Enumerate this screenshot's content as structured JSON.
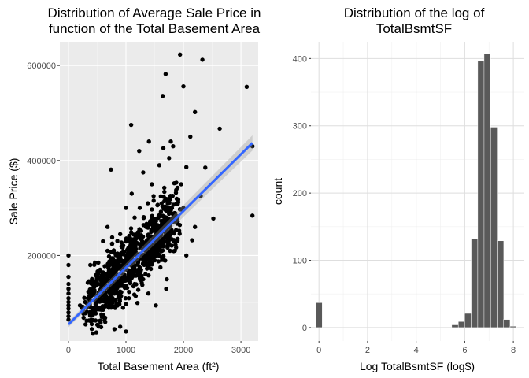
{
  "chart_data": [
    {
      "type": "scatter",
      "title": "Distribution of Average Sale Price in function of the Total Basement Area",
      "title_lines": [
        "Distribution of Average Sale Price in",
        "function of the Total Basement Area"
      ],
      "xlabel": "Total Basement Area (ft²)",
      "ylabel": "Sale Price ($)",
      "xlim": [
        -150,
        3300
      ],
      "ylim": [
        20000,
        650000
      ],
      "xticks": [
        0,
        1000,
        2000,
        3000
      ],
      "yticks": [
        200000,
        400000,
        600000
      ],
      "ytick_labels": [
        "200000",
        "400000",
        "600000"
      ],
      "grid": true,
      "point_color": "#000000",
      "panel_color": "#ebebeb",
      "trend": {
        "x": [
          0,
          3200
        ],
        "y": [
          55000,
          437000
        ],
        "color": "#3366ff",
        "band_color": "#999999"
      },
      "points": [
        {
          "x": 3100,
          "y": 555000
        },
        {
          "x": 3200,
          "y": 430000
        },
        {
          "x": 3200,
          "y": 284000
        },
        {
          "x": 2330,
          "y": 612000
        },
        {
          "x": 1940,
          "y": 623000
        },
        {
          "x": 2000,
          "y": 556000
        },
        {
          "x": 1690,
          "y": 582000
        },
        {
          "x": 1640,
          "y": 536000
        },
        {
          "x": 2200,
          "y": 502000
        },
        {
          "x": 2120,
          "y": 450000
        },
        {
          "x": 2630,
          "y": 467000
        },
        {
          "x": 1090,
          "y": 475000
        },
        {
          "x": 2520,
          "y": 278000
        },
        {
          "x": 2380,
          "y": 385000
        },
        {
          "x": 2200,
          "y": 260000
        },
        {
          "x": 2000,
          "y": 300000
        },
        {
          "x": 1820,
          "y": 430000
        },
        {
          "x": 1750,
          "y": 405000
        },
        {
          "x": 1650,
          "y": 426000
        },
        {
          "x": 1400,
          "y": 440000
        },
        {
          "x": 1230,
          "y": 420000
        },
        {
          "x": 1780,
          "y": 440000
        },
        {
          "x": 1580,
          "y": 390000
        },
        {
          "x": 1840,
          "y": 352000
        },
        {
          "x": 2050,
          "y": 386000
        },
        {
          "x": 740,
          "y": 381000
        },
        {
          "x": 1300,
          "y": 375000
        },
        {
          "x": 1960,
          "y": 350000
        },
        {
          "x": 2300,
          "y": 325000
        },
        {
          "x": 1480,
          "y": 325000
        },
        {
          "x": 1900,
          "y": 235000
        },
        {
          "x": 2150,
          "y": 232000
        },
        {
          "x": 1850,
          "y": 210000
        },
        {
          "x": 2050,
          "y": 200000
        },
        {
          "x": 2000,
          "y": 300000
        },
        {
          "x": 1600,
          "y": 175000
        },
        {
          "x": 1710,
          "y": 150000
        },
        {
          "x": 1390,
          "y": 120000
        },
        {
          "x": 1200,
          "y": 100000
        },
        {
          "x": 1520,
          "y": 95000
        },
        {
          "x": 1700,
          "y": 130000
        },
        {
          "x": 900,
          "y": 50000
        },
        {
          "x": 800,
          "y": 45000
        },
        {
          "x": 1000,
          "y": 40000
        },
        {
          "x": 640,
          "y": 60000
        },
        {
          "x": 430,
          "y": 85000
        },
        {
          "x": 330,
          "y": 92000
        },
        {
          "x": 200,
          "y": 95000
        },
        {
          "x": 550,
          "y": 170000
        },
        {
          "x": 520,
          "y": 185000
        },
        {
          "x": 420,
          "y": 140000
        },
        {
          "x": 380,
          "y": 180000
        },
        {
          "x": 600,
          "y": 230000
        },
        {
          "x": 680,
          "y": 260000
        },
        {
          "x": 760,
          "y": 225000
        },
        {
          "x": 1100,
          "y": 330000
        },
        {
          "x": 1450,
          "y": 350000
        },
        {
          "x": 1150,
          "y": 140000
        },
        {
          "x": 1250,
          "y": 165000
        },
        {
          "x": 950,
          "y": 90000
        },
        {
          "x": 1050,
          "y": 110000
        },
        {
          "x": 1300,
          "y": 200000
        },
        {
          "x": 1500,
          "y": 240000
        },
        {
          "x": 1350,
          "y": 260000
        },
        {
          "x": 900,
          "y": 245000
        },
        {
          "x": 1000,
          "y": 300000
        },
        {
          "x": 1150,
          "y": 280000
        },
        {
          "x": 1620,
          "y": 310000
        },
        {
          "x": 1700,
          "y": 280000
        },
        {
          "x": 1800,
          "y": 300000
        },
        {
          "x": 1200,
          "y": 240000
        },
        {
          "x": 700,
          "y": 130000
        },
        {
          "x": 820,
          "y": 150000
        },
        {
          "x": 960,
          "y": 170000
        },
        {
          "x": 1060,
          "y": 190000
        },
        {
          "x": 1120,
          "y": 220000
        },
        {
          "x": 870,
          "y": 115000
        },
        {
          "x": 760,
          "y": 100000
        },
        {
          "x": 640,
          "y": 115000
        },
        {
          "x": 1420,
          "y": 185000
        },
        {
          "x": 1560,
          "y": 210000
        },
        {
          "x": 1300,
          "y": 150000
        },
        {
          "x": 980,
          "y": 135000
        },
        {
          "x": 1080,
          "y": 155000
        },
        {
          "x": 860,
          "y": 185000
        },
        {
          "x": 1240,
          "y": 300000
        },
        {
          "x": 1380,
          "y": 310000
        }
      ],
      "zero_points": [
        {
          "x": 0,
          "y": 200000
        },
        {
          "x": 0,
          "y": 180000
        },
        {
          "x": 0,
          "y": 155000
        },
        {
          "x": 0,
          "y": 140000
        },
        {
          "x": 0,
          "y": 130000
        },
        {
          "x": 0,
          "y": 120000
        },
        {
          "x": 0,
          "y": 110000
        },
        {
          "x": 0,
          "y": 102000
        },
        {
          "x": 0,
          "y": 95000
        },
        {
          "x": 0,
          "y": 88000
        },
        {
          "x": 0,
          "y": 80000
        },
        {
          "x": 0,
          "y": 72000
        },
        {
          "x": 0,
          "y": 65000
        }
      ],
      "dense_core": [
        [
          400,
          80000
        ],
        [
          1200,
          230000
        ],
        [
          1500,
          300000
        ],
        [
          1700,
          320000
        ],
        [
          1200,
          170000
        ],
        [
          700,
          60000
        ]
      ]
    },
    {
      "type": "bar",
      "title": "Distribution of the log of TotalBsmtSF",
      "title_lines": [
        "Distribution of the log of",
        "TotalBsmtSF"
      ],
      "xlabel": "Log TotalBsmtSF (log$)",
      "ylabel": "count",
      "xlim": [
        -0.33,
        8.45
      ],
      "ylim": [
        -20,
        425
      ],
      "xticks": [
        0,
        2,
        4,
        6,
        8
      ],
      "yticks": [
        0,
        100,
        200,
        300,
        400
      ],
      "grid": true,
      "bar_color": "#595959",
      "bar_width": 0.27,
      "bins": [
        {
          "x": 0.0,
          "count": 37
        },
        {
          "x": 5.6,
          "count": 4
        },
        {
          "x": 5.87,
          "count": 9
        },
        {
          "x": 6.13,
          "count": 21
        },
        {
          "x": 6.4,
          "count": 132
        },
        {
          "x": 6.67,
          "count": 396
        },
        {
          "x": 6.93,
          "count": 407
        },
        {
          "x": 7.2,
          "count": 298
        },
        {
          "x": 7.47,
          "count": 129
        },
        {
          "x": 7.73,
          "count": 12
        },
        {
          "x": 8.0,
          "count": 2
        }
      ]
    }
  ]
}
